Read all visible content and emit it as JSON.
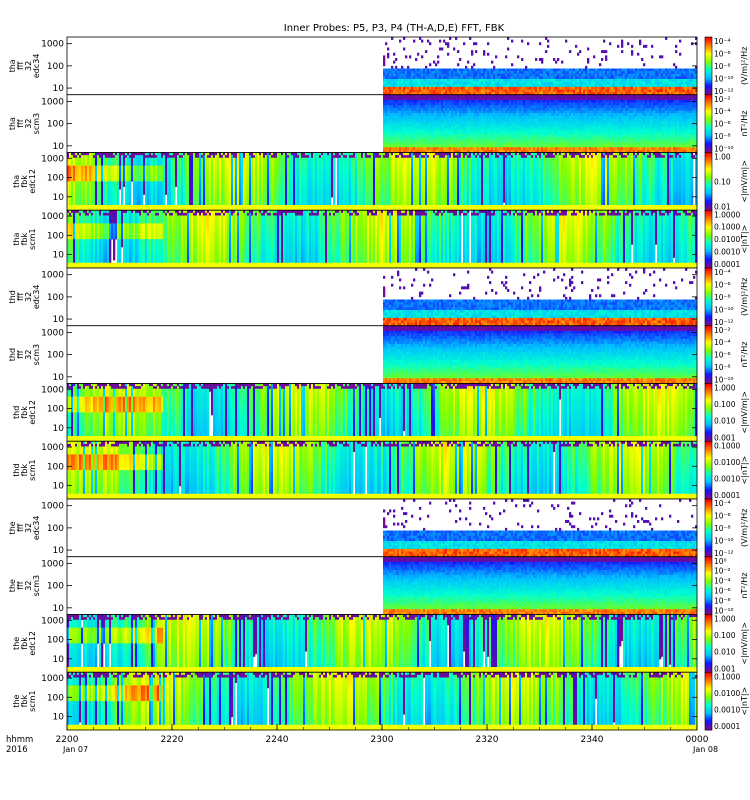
{
  "chart_data": {
    "type": "heatmap",
    "title": "Inner Probes: P5, P3, P4 (TH-A,D,E) FFT, FBK",
    "x_axis": {
      "label_lines": [
        "hhmm",
        "2016"
      ],
      "tick_labels": [
        "2200",
        "2220",
        "2240",
        "2300",
        "2320",
        "2340",
        "0000"
      ],
      "tick_dates": [
        "Jan 07",
        "",
        "",
        "",
        "",
        "",
        "Jan 08"
      ],
      "range": [
        "22:00",
        "00:00"
      ]
    },
    "panels": [
      {
        "label": [
          "tha",
          "fff",
          "32",
          "edc34"
        ],
        "instrument": "fff32_edc",
        "y_ticks": [
          "1000",
          "100",
          "10"
        ],
        "y_log_range": [
          5,
          2000
        ],
        "colorbar": {
          "unit": "(V/m)^2/Hz",
          "unit_display": "(V/m)²/Hz",
          "ticks": [
            "10⁻⁴",
            "10⁻⁶",
            "10⁻⁸",
            "10⁻¹⁰",
            "10⁻¹²"
          ],
          "range": [
            "1e-12",
            "1e-4"
          ],
          "scale": "log"
        },
        "data_start": "23:00",
        "data_rows": "sparse-spikes-over-floor"
      },
      {
        "label": [
          "tha",
          "fff",
          "32",
          "scm3"
        ],
        "instrument": "fff32_scm",
        "y_ticks": [
          "1000",
          "100",
          "10"
        ],
        "y_log_range": [
          5,
          2000
        ],
        "colorbar": {
          "unit": "nT^2/Hz",
          "unit_display": "nT²/Hz",
          "ticks": [
            "10⁻²",
            "10⁻⁴",
            "10⁻⁶",
            "10⁻⁸",
            "10⁻¹⁰"
          ],
          "range": [
            "1e-10",
            "1e-1"
          ],
          "scale": "log"
        },
        "data_start": "23:00",
        "data_rows": "smooth-falloff"
      },
      {
        "label": [
          "tha",
          "fbk",
          "edc12"
        ],
        "instrument": "fbk_edc",
        "y_ticks": [
          "1000",
          "100",
          "10"
        ],
        "y_log_range": [
          2,
          2000
        ],
        "colorbar": {
          "unit": "<|mV/m|>",
          "ticks": [
            "1.00",
            "0.10",
            "0.01"
          ],
          "range": [
            "0.005",
            "1.0"
          ],
          "scale": "log"
        },
        "data_start": "22:00",
        "data_rows": "banded"
      },
      {
        "label": [
          "tha",
          "fbk",
          "scm1"
        ],
        "instrument": "fbk_scm",
        "y_ticks": [
          "1000",
          "100",
          "10"
        ],
        "y_log_range": [
          2,
          2000
        ],
        "colorbar": {
          "unit": "<|nT|>",
          "ticks": [
            "1.0000",
            "0.1000",
            "0.0100",
            "0.0010",
            "0.0001"
          ],
          "range": [
            "0.0001",
            "1.0"
          ],
          "scale": "log"
        },
        "data_start": "22:00",
        "data_rows": "banded"
      },
      {
        "label": [
          "thd",
          "fff",
          "32",
          "edc34"
        ],
        "instrument": "fff32_edc",
        "y_ticks": [
          "1000",
          "100",
          "10"
        ],
        "y_log_range": [
          5,
          2000
        ],
        "colorbar": {
          "unit": "(V/m)^2/Hz",
          "unit_display": "(V/m)²/Hz",
          "ticks": [
            "10⁻⁴",
            "10⁻⁶",
            "10⁻⁸",
            "10⁻¹⁰",
            "10⁻¹²"
          ],
          "range": [
            "1e-12",
            "1e-4"
          ],
          "scale": "log"
        },
        "data_start": "23:00",
        "data_rows": "sparse-spikes-over-floor"
      },
      {
        "label": [
          "thd",
          "fff",
          "32",
          "scm3"
        ],
        "instrument": "fff32_scm",
        "y_ticks": [
          "1000",
          "100",
          "10"
        ],
        "y_log_range": [
          5,
          2000
        ],
        "colorbar": {
          "unit": "nT^2/Hz",
          "unit_display": "nT²/Hz",
          "ticks": [
            "10⁻²",
            "10⁻⁴",
            "10⁻⁶",
            "10⁻⁸",
            "10⁻¹⁰"
          ],
          "range": [
            "1e-10",
            "1e-1"
          ],
          "scale": "log"
        },
        "data_start": "23:00",
        "data_rows": "smooth-falloff"
      },
      {
        "label": [
          "thd",
          "fbk",
          "edc12"
        ],
        "instrument": "fbk_edc",
        "y_ticks": [
          "1000",
          "100",
          "10"
        ],
        "y_log_range": [
          2,
          2000
        ],
        "colorbar": {
          "unit": "<|mV/m|>",
          "ticks": [
            "1.000",
            "0.100",
            "0.010",
            "0.001"
          ],
          "range": [
            "0.001",
            "1.0"
          ],
          "scale": "log"
        },
        "data_start": "22:00",
        "data_rows": "banded"
      },
      {
        "label": [
          "thd",
          "fbk",
          "scm1"
        ],
        "instrument": "fbk_scm",
        "y_ticks": [
          "1000",
          "100",
          "10"
        ],
        "y_log_range": [
          2,
          2000
        ],
        "colorbar": {
          "unit": "<|nT|>",
          "ticks": [
            "0.1000",
            "0.0100",
            "0.0010",
            "0.0001"
          ],
          "range": [
            "0.0001",
            "0.3"
          ],
          "scale": "log"
        },
        "data_start": "22:00",
        "data_rows": "banded"
      },
      {
        "label": [
          "the",
          "fff",
          "32",
          "edc34"
        ],
        "instrument": "fff32_edc",
        "y_ticks": [
          "1000",
          "100",
          "10"
        ],
        "y_log_range": [
          5,
          2000
        ],
        "colorbar": {
          "unit": "(V/m)^2/Hz",
          "unit_display": "(V/m)²/Hz",
          "ticks": [
            "10⁻⁴",
            "10⁻⁶",
            "10⁻⁸",
            "10⁻¹⁰",
            "10⁻¹²"
          ],
          "range": [
            "1e-12",
            "1e-4"
          ],
          "scale": "log"
        },
        "data_start": "23:00",
        "data_rows": "sparse-spikes-over-floor"
      },
      {
        "label": [
          "the",
          "fff",
          "32",
          "scm3"
        ],
        "instrument": "fff32_scm",
        "y_ticks": [
          "1000",
          "100",
          "10"
        ],
        "y_log_range": [
          5,
          2000
        ],
        "colorbar": {
          "unit": "nT^2/Hz",
          "unit_display": "nT²/Hz",
          "ticks": [
            "10⁰",
            "10⁻²",
            "10⁻⁴",
            "10⁻⁶",
            "10⁻⁸",
            "10⁻¹⁰"
          ],
          "range": [
            "1e-10",
            "1"
          ],
          "scale": "log"
        },
        "data_start": "23:00",
        "data_rows": "smooth-falloff"
      },
      {
        "label": [
          "the",
          "fbk",
          "edc12"
        ],
        "instrument": "fbk_edc",
        "y_ticks": [
          "1000",
          "100",
          "10"
        ],
        "y_log_range": [
          2,
          2000
        ],
        "colorbar": {
          "unit": "<|mV/m|>",
          "ticks": [
            "1.000",
            "0.100",
            "0.010",
            "0.001"
          ],
          "range": [
            "0.001",
            "1.0"
          ],
          "scale": "log"
        },
        "data_start": "22:00",
        "data_rows": "banded"
      },
      {
        "label": [
          "the",
          "fbk",
          "scm1"
        ],
        "instrument": "fbk_scm",
        "y_ticks": [
          "1000",
          "100",
          "10"
        ],
        "y_log_range": [
          2,
          2000
        ],
        "colorbar": {
          "unit": "<|nT|>",
          "ticks": [
            "0.1000",
            "0.0100",
            "0.0010",
            "0.0001"
          ],
          "range": [
            "0.0001",
            "0.3"
          ],
          "scale": "log"
        },
        "data_start": "22:00",
        "data_rows": "banded"
      }
    ],
    "colormap": [
      "#7a0a8c",
      "#1414ff",
      "#00bfff",
      "#00ffd0",
      "#7fff00",
      "#ffff00",
      "#ff8000",
      "#ff0000"
    ],
    "grid": false,
    "legend": "colorbars-right-of-each-panel"
  }
}
